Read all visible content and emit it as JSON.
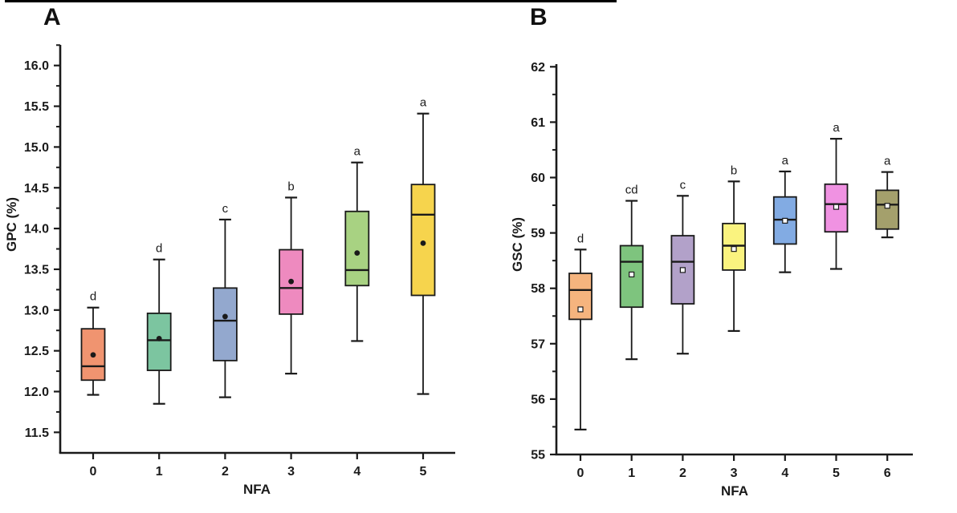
{
  "styles": {
    "ink": "#1a1a1a",
    "background": "#ffffff"
  },
  "chart_data": [
    {
      "type": "box",
      "panel_label": "A",
      "xlabel": "NFA",
      "ylabel": "GPC (%)",
      "categories": [
        "0",
        "1",
        "2",
        "3",
        "4",
        "5"
      ],
      "y_axis": {
        "min": 11.5,
        "max": 16.0,
        "major_step": 0.5,
        "minor_step": 0.25,
        "decimals": 1
      },
      "mean_marker": "filled-circle",
      "legend": "none",
      "grid": false,
      "series": [
        {
          "category": "0",
          "sig_letter": "d",
          "box_color": "#F09470",
          "whisker_low": 11.96,
          "q1": 12.14,
          "median": 12.31,
          "q3": 12.77,
          "whisker_high": 13.03,
          "mean": 12.45
        },
        {
          "category": "1",
          "sig_letter": "d",
          "box_color": "#7CC5A0",
          "whisker_low": 11.85,
          "q1": 12.26,
          "median": 12.63,
          "q3": 12.96,
          "whisker_high": 13.62,
          "mean": 12.65
        },
        {
          "category": "2",
          "sig_letter": "c",
          "box_color": "#93A8CE",
          "whisker_low": 11.93,
          "q1": 12.38,
          "median": 12.87,
          "q3": 13.27,
          "whisker_high": 14.11,
          "mean": 12.92
        },
        {
          "category": "3",
          "sig_letter": "b",
          "box_color": "#EE8ABF",
          "whisker_low": 12.22,
          "q1": 12.95,
          "median": 13.27,
          "q3": 13.74,
          "whisker_high": 14.38,
          "mean": 13.35
        },
        {
          "category": "4",
          "sig_letter": "a",
          "box_color": "#A8D282",
          "whisker_low": 12.62,
          "q1": 13.3,
          "median": 13.49,
          "q3": 14.21,
          "whisker_high": 14.81,
          "mean": 13.7
        },
        {
          "category": "5",
          "sig_letter": "a",
          "box_color": "#F6D44D",
          "whisker_low": 11.97,
          "q1": 13.18,
          "median": 14.17,
          "q3": 14.54,
          "whisker_high": 15.41,
          "mean": 13.82
        }
      ]
    },
    {
      "type": "box",
      "panel_label": "B",
      "xlabel": "NFA",
      "ylabel": "GSC (%)",
      "categories": [
        "0",
        "1",
        "2",
        "3",
        "4",
        "5",
        "6"
      ],
      "y_axis": {
        "min": 55,
        "max": 62,
        "major_step": 1,
        "minor_step": 0.5,
        "decimals": 0
      },
      "mean_marker": "open-square",
      "legend": "none",
      "grid": false,
      "series": [
        {
          "category": "0",
          "sig_letter": "d",
          "box_color": "#F5B47E",
          "whisker_low": 55.45,
          "q1": 57.44,
          "median": 57.97,
          "q3": 58.27,
          "whisker_high": 58.7,
          "mean": 57.62
        },
        {
          "category": "1",
          "sig_letter": "cd",
          "box_color": "#7EC47E",
          "whisker_low": 56.72,
          "q1": 57.66,
          "median": 58.48,
          "q3": 58.77,
          "whisker_high": 59.58,
          "mean": 58.25
        },
        {
          "category": "2",
          "sig_letter": "c",
          "box_color": "#B2A1C9",
          "whisker_low": 56.82,
          "q1": 57.72,
          "median": 58.48,
          "q3": 58.95,
          "whisker_high": 59.67,
          "mean": 58.33
        },
        {
          "category": "3",
          "sig_letter": "b",
          "box_color": "#FAF37F",
          "whisker_low": 57.23,
          "q1": 58.33,
          "median": 58.77,
          "q3": 59.17,
          "whisker_high": 59.93,
          "mean": 58.71
        },
        {
          "category": "4",
          "sig_letter": "a",
          "box_color": "#82ABE3",
          "whisker_low": 58.29,
          "q1": 58.8,
          "median": 59.24,
          "q3": 59.65,
          "whisker_high": 60.11,
          "mean": 59.22
        },
        {
          "category": "5",
          "sig_letter": "a",
          "box_color": "#F092E2",
          "whisker_low": 58.35,
          "q1": 59.02,
          "median": 59.52,
          "q3": 59.88,
          "whisker_high": 60.7,
          "mean": 59.47
        },
        {
          "category": "6",
          "sig_letter": "a",
          "box_color": "#A4A06C",
          "whisker_low": 58.92,
          "q1": 59.07,
          "median": 59.51,
          "q3": 59.77,
          "whisker_high": 60.1,
          "mean": 59.49
        }
      ]
    }
  ]
}
